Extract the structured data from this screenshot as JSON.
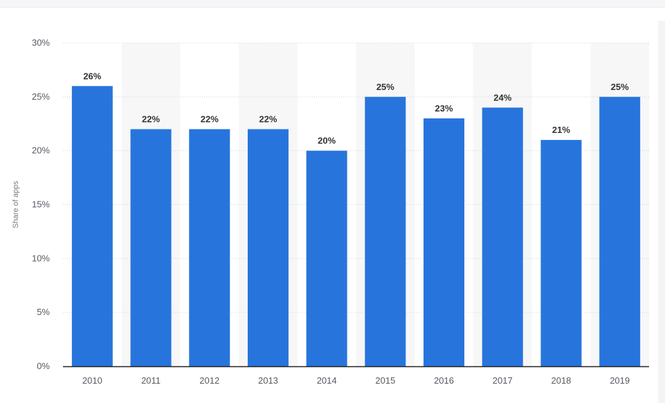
{
  "chart_data": {
    "type": "bar",
    "categories": [
      "2010",
      "2011",
      "2012",
      "2013",
      "2014",
      "2015",
      "2016",
      "2017",
      "2018",
      "2019"
    ],
    "values": [
      26,
      22,
      22,
      22,
      20,
      25,
      23,
      24,
      21,
      25
    ],
    "data_labels": [
      "26%",
      "22%",
      "22%",
      "22%",
      "20%",
      "25%",
      "23%",
      "24%",
      "21%",
      "25%"
    ],
    "title": "",
    "xlabel": "",
    "ylabel": "Share of apps",
    "ylim": [
      0,
      30
    ],
    "yticks": [
      0,
      5,
      10,
      15,
      20,
      25,
      30
    ],
    "ytick_labels": [
      "0%",
      "5%",
      "10%",
      "15%",
      "20%",
      "25%",
      "30%"
    ],
    "grid": true,
    "alternating_band_color": "#f7f7f7",
    "bar_color": "#2775dc",
    "grid_color": "#d0d4d9",
    "axis_color": "#222222"
  }
}
